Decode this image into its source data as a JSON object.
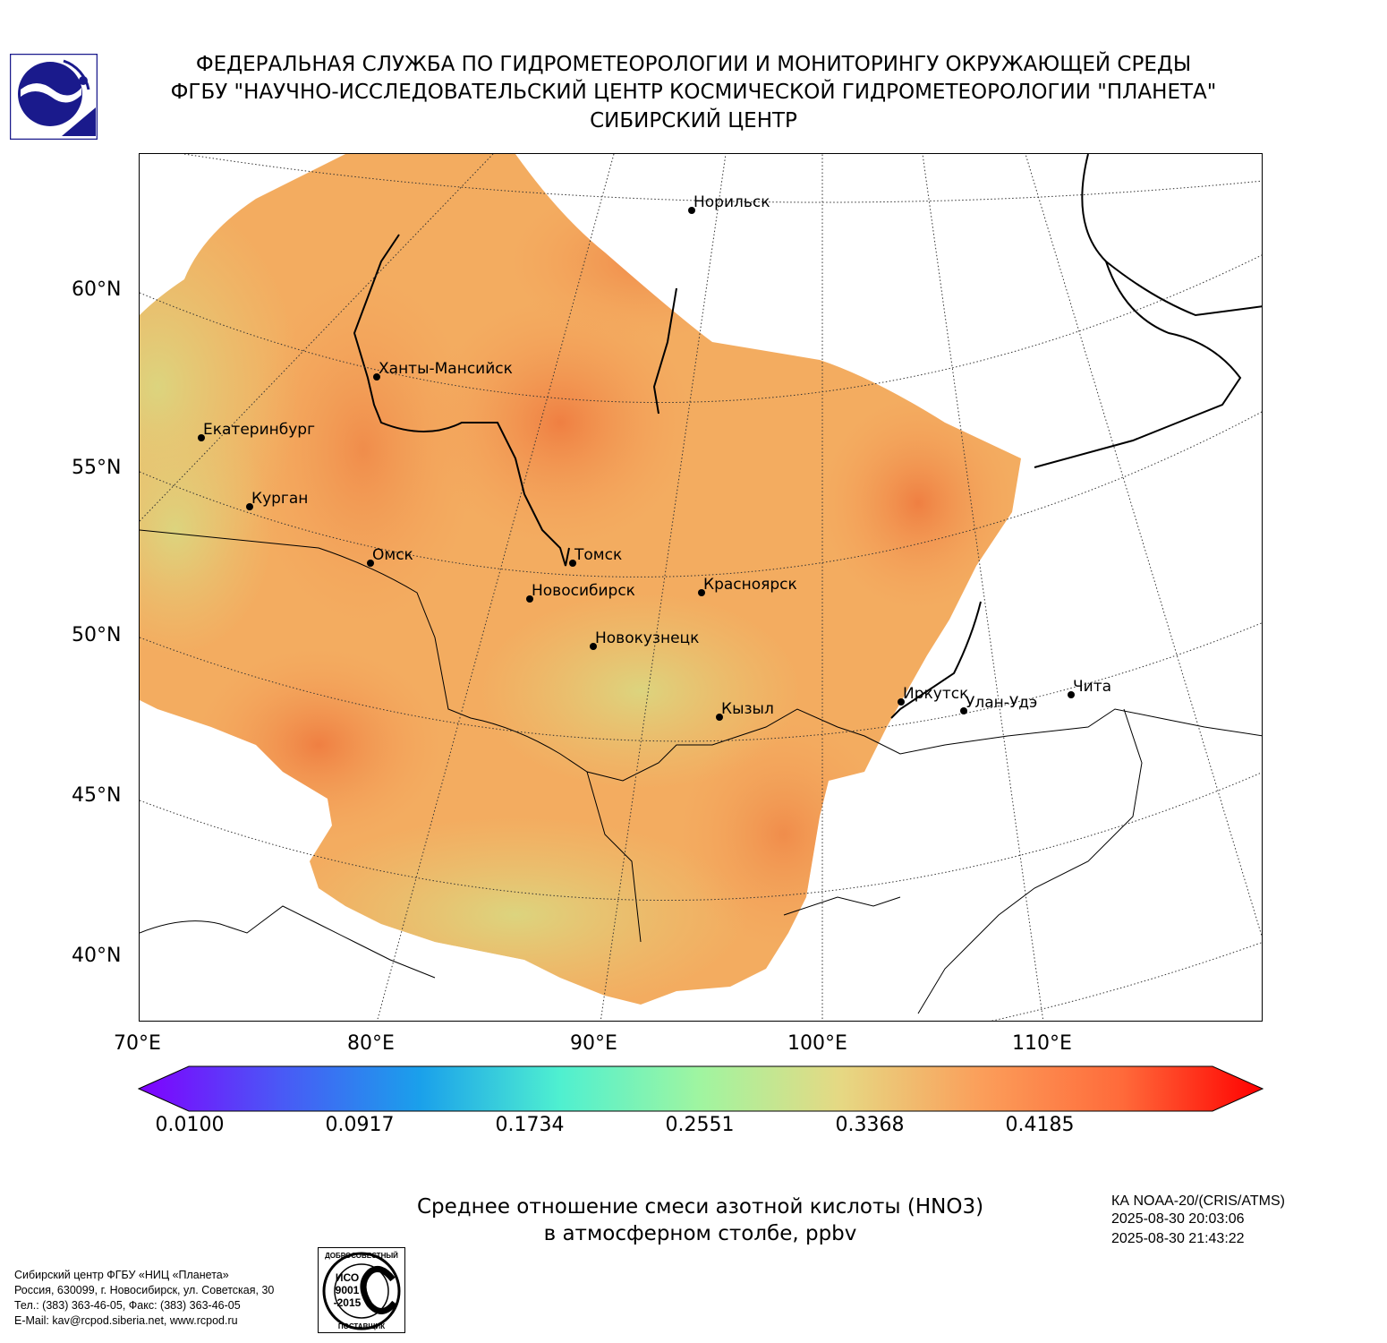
{
  "header": {
    "line1": "ФЕДЕРАЛЬНАЯ СЛУЖБА ПО ГИДРОМЕТЕОРОЛОГИИ И МОНИТОРИНГУ ОКРУЖАЮЩЕЙ СРЕДЫ",
    "line2": "ФГБУ \"НАУЧНО-ИССЛЕДОВАТЕЛЬСКИЙ ЦЕНТР КОСМИЧЕСКОЙ ГИДРОМЕТЕОРОЛОГИИ \"ПЛАНЕТА\"",
    "line3": "СИБИРСКИЙ ЦЕНТР"
  },
  "map": {
    "lat_labels": [
      "60°N",
      "55°N",
      "50°N",
      "45°N",
      "40°N"
    ],
    "lon_labels": [
      "70°E",
      "80°E",
      "90°E",
      "100°E",
      "110°E"
    ],
    "cities": [
      {
        "name": "Норильск"
      },
      {
        "name": "Ханты-Мансийск"
      },
      {
        "name": "Екатеринбург"
      },
      {
        "name": "Курган"
      },
      {
        "name": "Омск"
      },
      {
        "name": "Томск"
      },
      {
        "name": "Новосибирск"
      },
      {
        "name": "Красноярск"
      },
      {
        "name": "Новокузнецк"
      },
      {
        "name": "Кызыл"
      },
      {
        "name": "Иркутск"
      },
      {
        "name": "Улан-Удэ"
      },
      {
        "name": "Чита"
      }
    ],
    "colors": {
      "low": "#d9d97a",
      "mid": "#f5b866",
      "high": "#f08a4a"
    }
  },
  "colorbar": {
    "ticks": [
      "0.0100",
      "0.0917",
      "0.1734",
      "0.2551",
      "0.3368",
      "0.4185"
    ],
    "colors": [
      "#8000ff",
      "#4a58f6",
      "#1aa0eb",
      "#4ff0d0",
      "#a0f5a0",
      "#e6d883",
      "#fb9e5a",
      "#ff6a3a",
      "#ff0000"
    ]
  },
  "caption": {
    "line1": "Среднее отношение смеси азотной кислоты (HNO3)",
    "line2": "в атмосферном столбе, ppbv"
  },
  "satellite": {
    "line1": "КА NOAA-20/(CRIS/ATMS)",
    "line2": "2025-08-30 20:03:06",
    "line3": "2025-08-30 21:43:22"
  },
  "footer": {
    "line1": "Сибирский центр ФГБУ «НИЦ «Планета»",
    "line2": "Россия, 630099, г. Новосибирск, ул. Советская, 30",
    "line3": "Тел.: (383) 363-46-05, Факс: (383) 363-46-05",
    "line4": "E-Mail: kav@rcpod.siberia.net, www.rcpod.ru"
  },
  "iso_badge": {
    "top": "ДОБРОСОВЕСТНЫЙ",
    "l1": "ИСО",
    "l2": "9001",
    "l3": "-2015",
    "bottom": "ПОСТАВЩИК"
  }
}
